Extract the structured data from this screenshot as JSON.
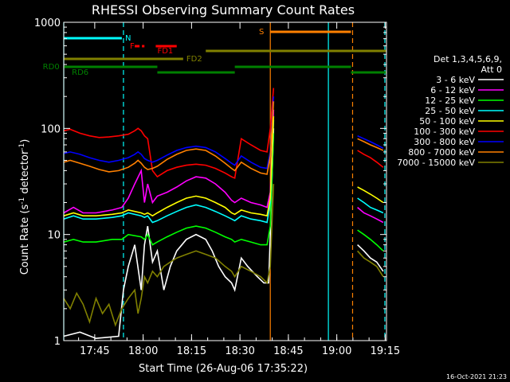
{
  "chart_data": {
    "type": "line",
    "title": "RHESSI Observing Summary Count Rates",
    "xlabel": "Start Time (26-Aug-06 17:35:22)",
    "ylabel_main": "Count Rate (s",
    "ylabel_sup1": "-1",
    "ylabel_mid": " detector",
    "ylabel_sup2": "-1",
    "ylabel_end": ")",
    "yscale": "log",
    "ylim": [
      1,
      1000
    ],
    "xlim_minutes": [
      0,
      100
    ],
    "xticks": [
      {
        "label": "17:45",
        "t": 9.6
      },
      {
        "label": "18:00",
        "t": 24.6
      },
      {
        "label": "18:15",
        "t": 39.6
      },
      {
        "label": "18:30",
        "t": 54.6
      },
      {
        "label": "18:45",
        "t": 69.6
      },
      {
        "label": "19:00",
        "t": 84.6
      },
      {
        "label": "19:15",
        "t": 99.6
      }
    ],
    "yticks": [
      {
        "label": "1",
        "v": 1
      },
      {
        "label": "10",
        "v": 10
      },
      {
        "label": "100",
        "v": 100
      },
      {
        "label": "1000",
        "v": 1000
      }
    ],
    "legend": {
      "placement": "right",
      "header": [
        "Det 1,3,4,5,6,9,",
        "Att 0"
      ]
    },
    "series": [
      {
        "name": "3 - 6 keV",
        "color": "#ffffff",
        "t": [
          0,
          5,
          10,
          17,
          18.5,
          20,
          22,
          24,
          25,
          26,
          27.5,
          29,
          31,
          33,
          35,
          38,
          41,
          44,
          46,
          48,
          50,
          52,
          53,
          55,
          57,
          60,
          62,
          63.5,
          64,
          65
        ],
        "values": [
          1.1,
          1.2,
          1.05,
          1.1,
          3,
          5,
          8,
          3,
          8,
          12,
          5.5,
          7,
          3,
          5,
          7,
          9,
          10,
          9,
          7,
          5,
          4,
          3.5,
          3,
          6,
          5,
          4,
          3.5,
          3.5,
          10,
          100
        ]
      },
      {
        "name": "6 - 12 keV",
        "color": "#ff00ff",
        "t": [
          0,
          3,
          6,
          10,
          15,
          18,
          20,
          22,
          24,
          25,
          26,
          27.5,
          29,
          32,
          35,
          38,
          41,
          44,
          47,
          50,
          52,
          53,
          55,
          58,
          61,
          63,
          64,
          65
        ],
        "values": [
          16,
          18,
          16,
          16,
          17,
          18,
          22,
          30,
          40,
          20,
          30,
          20,
          23,
          25,
          28,
          32,
          35,
          34,
          30,
          25,
          21,
          20,
          22,
          20,
          19,
          18,
          25,
          150
        ]
      },
      {
        "name": "12 - 25 keV",
        "color": "#00ff00",
        "t": [
          0,
          3,
          6,
          10,
          15,
          18,
          20,
          24,
          25,
          26,
          27.5,
          29,
          32,
          35,
          38,
          41,
          44,
          47,
          50,
          52,
          53,
          55,
          58,
          61,
          63,
          64,
          65
        ],
        "values": [
          8.5,
          9,
          8.5,
          8.5,
          9,
          9,
          10,
          9.5,
          9,
          10,
          8,
          8.5,
          9.5,
          10.5,
          11.5,
          12,
          11.5,
          10.5,
          9.5,
          9,
          8.5,
          9,
          8.5,
          8,
          8,
          12,
          90
        ]
      },
      {
        "name": "25 - 50 keV",
        "color": "#00ffff",
        "t": [
          0,
          3,
          6,
          10,
          15,
          18,
          20,
          24,
          25,
          26,
          27.5,
          29,
          32,
          35,
          38,
          41,
          44,
          47,
          50,
          52,
          53,
          55,
          58,
          61,
          63,
          64,
          65
        ],
        "values": [
          14,
          15,
          14,
          14,
          14.5,
          15,
          16,
          15,
          14.5,
          15,
          13,
          13.5,
          15,
          16.5,
          18,
          19,
          18,
          16.5,
          15,
          14,
          13.5,
          15,
          14,
          13.5,
          13,
          20,
          120
        ]
      },
      {
        "name": "50 - 100 keV",
        "color": "#ffff00",
        "t": [
          0,
          3,
          6,
          10,
          15,
          18,
          20,
          24,
          25,
          26,
          27.5,
          29,
          32,
          35,
          38,
          41,
          44,
          47,
          50,
          52,
          53,
          55,
          58,
          61,
          63,
          64,
          65
        ],
        "values": [
          15,
          16,
          15,
          15,
          15.5,
          16,
          17,
          16,
          15.5,
          16,
          15,
          16,
          18,
          20,
          22,
          23,
          22,
          20,
          18,
          16,
          15.5,
          17,
          16,
          15.5,
          15,
          22,
          130
        ]
      },
      {
        "name": "100 - 300 keV",
        "color": "#ff0000",
        "t": [
          0,
          2,
          5,
          8,
          11,
          14,
          17,
          20,
          22,
          23,
          24,
          25,
          26,
          27.5,
          29,
          32,
          35,
          38,
          41,
          44,
          47,
          50,
          52,
          53,
          55,
          58,
          61,
          63,
          64,
          65
        ],
        "values": [
          95,
          98,
          90,
          85,
          82,
          83,
          85,
          88,
          95,
          100,
          95,
          85,
          80,
          40,
          35,
          40,
          43,
          45,
          46,
          45,
          42,
          38,
          35,
          34,
          80,
          70,
          62,
          60,
          100,
          240
        ]
      },
      {
        "name": "300 - 800 keV",
        "color": "#0000ff",
        "t": [
          0,
          2,
          5,
          8,
          11,
          14,
          17,
          20,
          22,
          23,
          24,
          25,
          26,
          27.5,
          29,
          32,
          35,
          38,
          41,
          44,
          47,
          50,
          52,
          53,
          55,
          58,
          61,
          63,
          64,
          65
        ],
        "values": [
          58,
          60,
          57,
          53,
          50,
          48,
          50,
          53,
          57,
          60,
          57,
          52,
          50,
          48,
          50,
          56,
          62,
          66,
          68,
          66,
          60,
          52,
          47,
          45,
          55,
          48,
          43,
          42,
          60,
          200
        ]
      },
      {
        "name": "800 - 7000 keV",
        "color": "#ff8000",
        "t": [
          0,
          2,
          5,
          8,
          11,
          14,
          17,
          20,
          22,
          23,
          24,
          25,
          26,
          27.5,
          29,
          32,
          35,
          38,
          41,
          44,
          47,
          50,
          52,
          53,
          55,
          58,
          61,
          63,
          64,
          65
        ],
        "values": [
          48,
          50,
          47,
          44,
          41,
          39,
          40,
          43,
          47,
          50,
          47,
          43,
          41,
          42,
          44,
          51,
          57,
          62,
          64,
          62,
          55,
          47,
          42,
          40,
          48,
          42,
          38,
          37,
          55,
          180
        ]
      },
      {
        "name": "7000 - 15000 keV",
        "color": "#808000",
        "t": [
          0,
          2,
          4,
          6,
          8,
          10,
          12,
          14,
          16,
          18,
          20,
          22,
          23,
          24,
          25,
          26,
          27.5,
          29,
          31,
          33,
          35,
          38,
          41,
          44,
          47,
          50,
          52,
          53,
          55,
          58,
          61,
          63,
          64,
          65
        ],
        "values": [
          2.5,
          2,
          2.8,
          2.2,
          1.5,
          2.5,
          1.8,
          2.2,
          1.4,
          2,
          2.5,
          3,
          1.8,
          2.5,
          4,
          3.5,
          4.5,
          4,
          5,
          5.5,
          6,
          6.5,
          7,
          6.5,
          6,
          5,
          4.5,
          4,
          5,
          4.5,
          4,
          3.5,
          5,
          30
        ]
      }
    ],
    "tail_series": {
      "t": [
        91,
        93,
        95,
        97,
        99
      ],
      "values": {
        "3 - 6 keV": [
          8,
          7,
          6,
          5.5,
          4.5
        ],
        "6 - 12 keV": [
          18,
          16,
          15,
          14,
          13
        ],
        "12 - 25 keV": [
          11,
          10,
          9,
          8,
          7
        ],
        "25 - 50 keV": [
          22,
          20,
          18,
          17,
          16
        ],
        "50 - 100 keV": [
          28,
          26,
          24,
          22,
          20
        ],
        "100 - 300 keV": [
          62,
          57,
          53,
          48,
          43
        ],
        "300 - 800 keV": [
          85,
          80,
          75,
          70,
          65
        ],
        "800 - 7000 keV": [
          80,
          75,
          70,
          66,
          62
        ],
        "7000 - 15000 keV": [
          7,
          6,
          5.5,
          5,
          4
        ]
      }
    },
    "flags": [
      {
        "label": "N",
        "color": "#00ffff",
        "segments": [
          [
            0,
            18
          ]
        ],
        "row": 0,
        "label_t": 19
      },
      {
        "label": "F",
        "color": "#ff0000",
        "segments": [
          [
            22,
            25
          ]
        ],
        "row": 1,
        "label_t": 20.5,
        "dashed": true
      },
      {
        "label": "",
        "color": "#ff0000",
        "segments": [
          [
            28.5,
            35
          ]
        ],
        "row": 1
      },
      {
        "label": "FD1",
        "color": "#ff0000",
        "segments": [],
        "row": 2,
        "label_t": 29
      },
      {
        "label": "FD2",
        "color": "#808000",
        "segments": [
          [
            0,
            37
          ]
        ],
        "row": 3,
        "label_t": 38
      },
      {
        "label": "",
        "color": "#808000",
        "segments": [
          [
            44,
            100
          ]
        ],
        "row": 2
      },
      {
        "label": "RD0",
        "color": "#008000",
        "segments": [
          [
            0,
            29
          ]
        ],
        "row": 4,
        "label_t": -6.5
      },
      {
        "label": "",
        "color": "#008000",
        "segments": [
          [
            53,
            89
          ]
        ],
        "row": 4
      },
      {
        "label": "RD6",
        "color": "#008000",
        "segments": [
          [
            29,
            53
          ],
          [
            89,
            100
          ]
        ],
        "row": 5,
        "label_t": 2.5
      },
      {
        "label": "S",
        "color": "#ff8000",
        "segments": [
          [
            64,
            89
          ]
        ],
        "row": -1,
        "label_t": 60.5
      }
    ],
    "vlines": [
      {
        "t": 0,
        "color": "#00ffff",
        "dashed": false
      },
      {
        "t": 18.5,
        "color": "#00ffff",
        "dashed": true
      },
      {
        "t": 64,
        "color": "#ff8000",
        "dashed": false
      },
      {
        "t": 82,
        "color": "#00ffff",
        "dashed": false
      },
      {
        "t": 89.5,
        "color": "#ff8000",
        "dashed": true
      },
      {
        "t": 99.5,
        "color": "#00ffff",
        "dashed": true
      }
    ],
    "timestamp": "16-Oct-2021 21:23"
  }
}
